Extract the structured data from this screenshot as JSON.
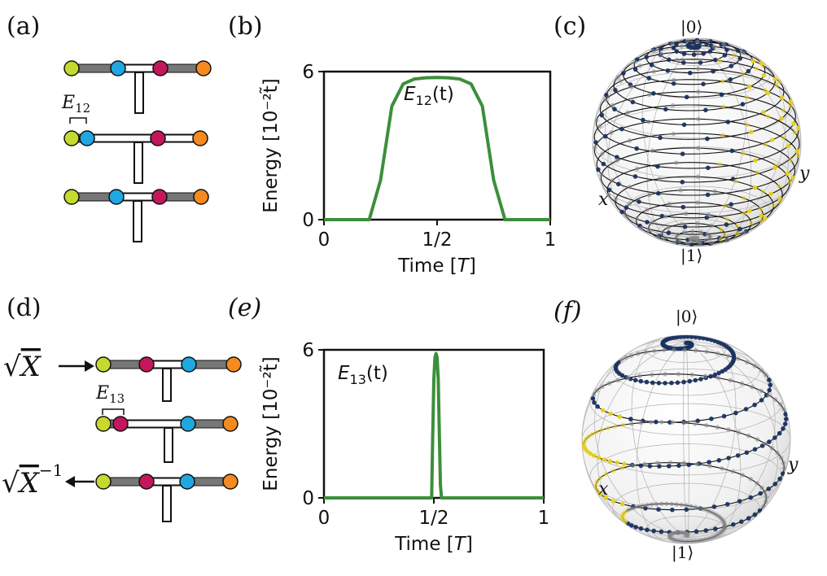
{
  "figure": {
    "panel_labels": [
      "(a)",
      "(b)",
      "(c)",
      "(d)",
      "(e)",
      "(f)"
    ],
    "colors": {
      "lime": "#c6d92e",
      "cyan": "#1fa8e0",
      "magenta": "#c2185b",
      "orange": "#f58a1f",
      "curve": "#3b8f3b",
      "navy": "#1b3160",
      "yellow": "#e8d21a",
      "gray": "#8a8a8a"
    }
  },
  "panel_a": {
    "coupling_label": "E12"
  },
  "panel_d": {
    "coupling_label": "E13",
    "gate_top": "√X",
    "gate_bottom": "√X",
    "gate_bottom_exp": "−1"
  },
  "panel_c": {
    "north_label": "|0⟩",
    "south_label": "|1⟩",
    "x_label": "x",
    "y_label": "y"
  },
  "panel_f": {
    "north_label": "|0⟩",
    "south_label": "|1⟩",
    "x_label": "x",
    "y_label": "y"
  },
  "chart_data": [
    {
      "type": "line",
      "panel": "(b)",
      "series": [
        {
          "name": "E12(t)",
          "x": [
            0,
            0.1,
            0.2,
            0.25,
            0.3,
            0.35,
            0.4,
            0.45,
            0.5,
            0.55,
            0.6,
            0.65,
            0.7,
            0.75,
            0.8,
            0.85,
            0.9,
            1.0
          ],
          "y": [
            0,
            0,
            0,
            1.6,
            4.6,
            5.5,
            5.7,
            5.75,
            5.76,
            5.75,
            5.7,
            5.5,
            4.6,
            1.6,
            0,
            0,
            0,
            0
          ]
        }
      ],
      "xlabel": "Time [T]",
      "ylabel": "Energy [10⁻²t̃]",
      "xlim": [
        0,
        1
      ],
      "ylim": [
        0,
        6
      ],
      "xticks": [
        "0",
        "1/2",
        "1"
      ],
      "yticks": [
        "0",
        "6"
      ]
    },
    {
      "type": "line",
      "panel": "(e)",
      "series": [
        {
          "name": "E13(t)",
          "x": [
            0.45,
            0.49,
            0.495,
            0.5,
            0.505,
            0.51,
            0.515,
            0.52,
            0.525,
            0.53,
            0.535,
            0.54,
            0.55
          ],
          "y": [
            0,
            0,
            2.5,
            4.8,
            5.7,
            5.85,
            5.7,
            4.8,
            2.5,
            0.5,
            0,
            0,
            0
          ]
        }
      ],
      "xlabel": "Time [T]",
      "ylabel": "Energy [10⁻²t̃]",
      "xlim": [
        0,
        1
      ],
      "ylim": [
        0,
        6
      ],
      "xticks": [
        "0",
        "1/2",
        "1"
      ],
      "yticks": [
        "0",
        "6"
      ]
    }
  ]
}
